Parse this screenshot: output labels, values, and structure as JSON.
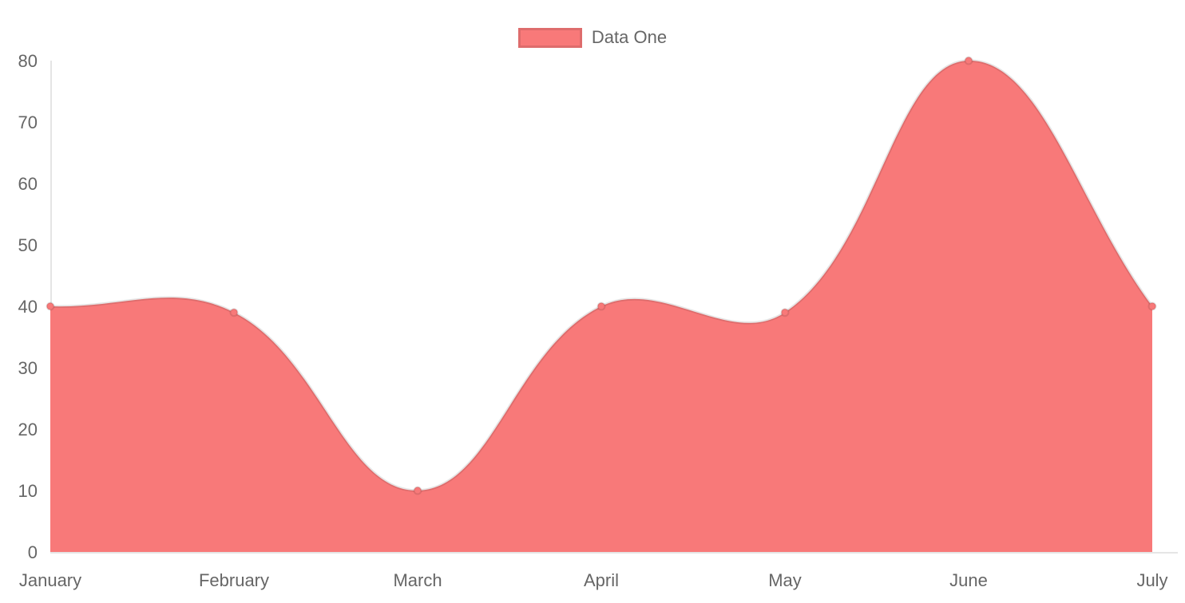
{
  "chart_data": {
    "type": "area",
    "title": "",
    "categories": [
      "January",
      "February",
      "March",
      "April",
      "May",
      "June",
      "July"
    ],
    "series": [
      {
        "name": "Data One",
        "values": [
          40,
          39,
          10,
          40,
          39,
          80,
          40
        ]
      }
    ],
    "ylim": [
      0,
      80
    ],
    "yticks": [
      0,
      10,
      20,
      30,
      40,
      50,
      60,
      70,
      80
    ],
    "grid": false,
    "legend_position": "top-center",
    "interpolation": "cubic-bezier-spline",
    "tension": 0.4,
    "colors": {
      "fill": "#f87979",
      "line": "rgba(0,0,0,0.10)",
      "point_fill": "#f87979",
      "point_border": "rgba(0,0,0,0.10)",
      "axis_line": "rgba(0,0,0,0.10)",
      "tick_text": "#666666"
    }
  },
  "legend": {
    "items": [
      {
        "label": "Data One",
        "color": "#f87979"
      }
    ]
  }
}
